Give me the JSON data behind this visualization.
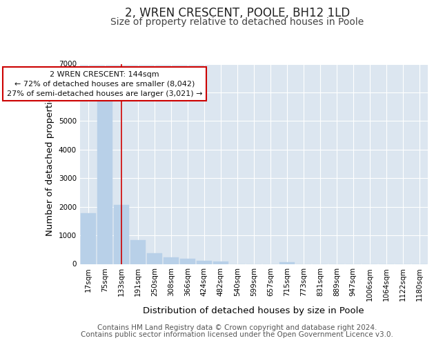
{
  "title": "2, WREN CRESCENT, POOLE, BH12 1LD",
  "subtitle": "Size of property relative to detached houses in Poole",
  "xlabel": "Distribution of detached houses by size in Poole",
  "ylabel": "Number of detached properties",
  "bar_color": "#b8d0e8",
  "bar_edge_color": "#b8d0e8",
  "vline_color": "#cc0000",
  "vline_x_index": 2,
  "annotation_text": "2 WREN CRESCENT: 144sqm\n← 72% of detached houses are smaller (8,042)\n27% of semi-detached houses are larger (3,021) →",
  "annotation_box_color": "#ffffff",
  "annotation_box_edge": "#cc0000",
  "categories": [
    "17sqm",
    "75sqm",
    "133sqm",
    "191sqm",
    "250sqm",
    "308sqm",
    "366sqm",
    "424sqm",
    "482sqm",
    "540sqm",
    "599sqm",
    "657sqm",
    "715sqm",
    "773sqm",
    "831sqm",
    "889sqm",
    "947sqm",
    "1006sqm",
    "1064sqm",
    "1122sqm",
    "1180sqm"
  ],
  "values": [
    1780,
    5750,
    2060,
    840,
    370,
    230,
    170,
    100,
    80,
    0,
    0,
    0,
    65,
    0,
    0,
    0,
    0,
    0,
    0,
    0,
    0
  ],
  "ylim": [
    0,
    7000
  ],
  "yticks": [
    0,
    1000,
    2000,
    3000,
    4000,
    5000,
    6000,
    7000
  ],
  "background_color": "#ffffff",
  "plot_bg_color": "#dce6f0",
  "grid_color": "#ffffff",
  "footer_line1": "Contains HM Land Registry data © Crown copyright and database right 2024.",
  "footer_line2": "Contains public sector information licensed under the Open Government Licence v3.0.",
  "title_fontsize": 12,
  "subtitle_fontsize": 10,
  "axis_label_fontsize": 9.5,
  "tick_fontsize": 7.5,
  "footer_fontsize": 7.5
}
